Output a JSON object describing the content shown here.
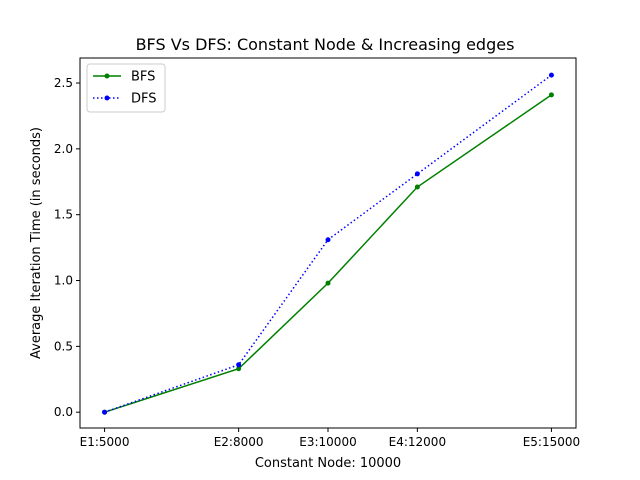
{
  "chart_data": {
    "type": "line",
    "title": "BFS Vs DFS: Constant Node & Increasing edges",
    "xlabel": "Constant Node: 10000",
    "ylabel": "Average Iteration Time (in seconds)",
    "x": [
      5000,
      8000,
      10000,
      12000,
      15000
    ],
    "xtick_labels": [
      "E1:5000",
      "E2:8000",
      "E3:10000",
      "E4:12000",
      "E5:15000"
    ],
    "xlim": [
      4450,
      15550
    ],
    "ylim": [
      -0.12,
      2.69
    ],
    "yticks": [
      0.0,
      0.5,
      1.0,
      1.5,
      2.0,
      2.5
    ],
    "ytick_labels": [
      "0.0",
      "0.5",
      "1.0",
      "1.5",
      "2.0",
      "2.5"
    ],
    "grid": false,
    "legend_position": "upper-left",
    "series": [
      {
        "name": "BFS",
        "values": [
          0.0,
          0.33,
          0.98,
          1.71,
          2.41
        ],
        "color": "#008000",
        "linestyle": "solid"
      },
      {
        "name": "DFS",
        "values": [
          0.0,
          0.36,
          1.31,
          1.81,
          2.56
        ],
        "color": "#0000ff",
        "linestyle": "dotted"
      }
    ]
  }
}
